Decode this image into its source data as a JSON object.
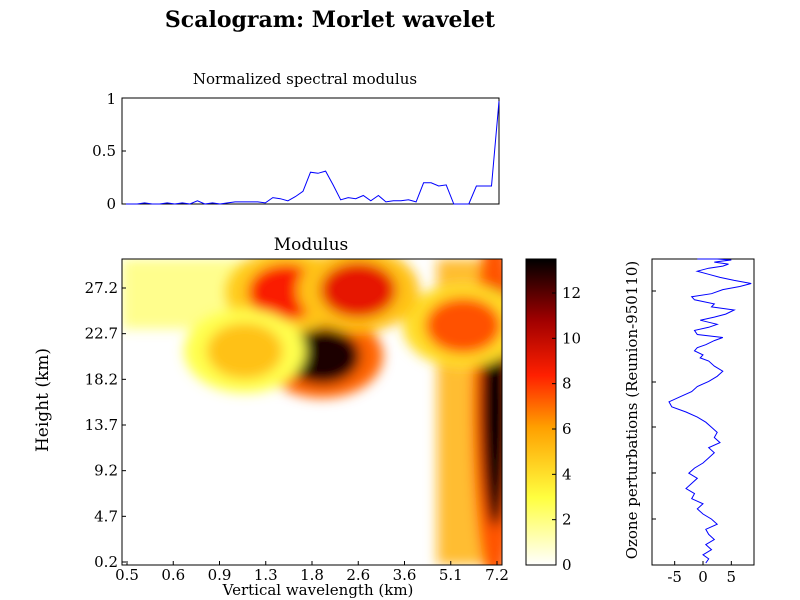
{
  "page": {
    "title": "Scalogram: Morlet wavelet"
  },
  "chart_data": [
    {
      "type": "line",
      "title": "Normalized spectral modulus",
      "xlabel": "",
      "ylabel": "",
      "ylim": [
        0,
        1
      ],
      "yticks": [
        "0",
        "0.5",
        "1"
      ],
      "line_color": "#0000ff",
      "series": [
        {
          "values": [
            0.0,
            0.0,
            0.0,
            0.01,
            0.0,
            0.0,
            0.01,
            0.0,
            0.01,
            0.0,
            0.03,
            0.0,
            0.01,
            0.0,
            0.01,
            0.02,
            0.02,
            0.02,
            0.02,
            0.01,
            0.06,
            0.05,
            0.03,
            0.07,
            0.12,
            0.3,
            0.29,
            0.31,
            0.18,
            0.04,
            0.06,
            0.05,
            0.08,
            0.03,
            0.08,
            0.02,
            0.03,
            0.03,
            0.04,
            0.02,
            0.2,
            0.2,
            0.17,
            0.18,
            0.0,
            0.0,
            0.0,
            0.17,
            0.17,
            0.17,
            0.97
          ]
        }
      ]
    },
    {
      "type": "heatmap",
      "title": "Modulus",
      "xlabel": "Vertical wavelength (km)",
      "ylabel": "Height (km)",
      "x_ticks": [
        "0.5",
        "0.6",
        "0.9",
        "1.3",
        "1.8",
        "2.6",
        "3.6",
        "5.1",
        "7.2"
      ],
      "y_ticks": [
        "0.2",
        "4.7",
        "9.2",
        "13.7",
        "18.2",
        "22.7",
        "27.2"
      ],
      "ylim": [
        0,
        30
      ],
      "colormap": "hot_inverted",
      "colorbar": {
        "min": 0,
        "max": 13.5,
        "ticks": [
          "0",
          "2",
          "4",
          "6",
          "8",
          "10",
          "12"
        ]
      },
      "hotspots": [
        {
          "x_km": 1.95,
          "y_km": 20.5,
          "value": 13.0
        },
        {
          "x_km": 7.1,
          "y_km": 15.5,
          "value": 13.5
        },
        {
          "x_km": 1.5,
          "y_km": 26.8,
          "value": 8.5
        },
        {
          "x_km": 5.6,
          "y_km": 23.5,
          "value": 7.5
        },
        {
          "x_km": 1.1,
          "y_km": 21.0,
          "value": 5.0
        },
        {
          "x_km": 2.6,
          "y_km": 27.0,
          "value": 9.0
        }
      ]
    },
    {
      "type": "line",
      "title": "",
      "xlabel": "",
      "ylabel": "Ozone perturbations (Reunion-950110)",
      "x_ticks": [
        "-5",
        "0",
        "5"
      ],
      "xlim": [
        -9,
        9
      ],
      "ylim": [
        0,
        30
      ],
      "line_color": "#0000ff",
      "series": [
        {
          "x": [
            0.5,
            1.0,
            0.0,
            1.5,
            0.5,
            2.0,
            1.0,
            0.5,
            2.5,
            1.5,
            0.0,
            -1.0,
            0.0,
            -2.0,
            -1.5,
            -3.0,
            -2.0,
            -1.0,
            -2.5,
            -1.5,
            0.0,
            1.0,
            2.0,
            1.0,
            3.0,
            2.0,
            2.5,
            1.5,
            0.5,
            -1.0,
            -3.0,
            -5.5,
            -6.0,
            -4.0,
            -2.0,
            -1.0,
            1.0,
            2.5,
            3.5,
            2.0,
            1.0,
            -0.5,
            0.0,
            -1.5,
            -1.0,
            0.5,
            2.0,
            3.5,
            -1.0,
            -1.5,
            1.0,
            2.5,
            -0.5,
            2.0,
            4.0,
            5.5,
            1.5,
            2.0,
            -1.5,
            -2.0,
            1.5,
            3.5,
            6.5,
            8.5,
            5.5,
            3.0,
            1.0,
            -1.0,
            1.0,
            3.5,
            4.5,
            2.0,
            3.5,
            5.0,
            2.5,
            0.0,
            -1.0
          ],
          "y": [
            0.2,
            0.6,
            1.0,
            1.5,
            2.0,
            2.5,
            3.0,
            3.5,
            4.0,
            4.5,
            5.0,
            5.5,
            6.0,
            6.5,
            7.0,
            7.5,
            8.0,
            8.5,
            9.0,
            9.5,
            10.0,
            10.5,
            11.0,
            11.5,
            12.0,
            12.5,
            13.0,
            13.5,
            14.0,
            14.5,
            15.0,
            15.5,
            16.0,
            16.5,
            17.0,
            17.5,
            18.0,
            18.5,
            19.0,
            19.5,
            20.0,
            20.3,
            20.6,
            21.0,
            21.3,
            21.6,
            22.0,
            22.3,
            22.6,
            23.0,
            23.3,
            23.6,
            24.0,
            24.3,
            24.6,
            25.0,
            25.3,
            25.6,
            26.0,
            26.3,
            26.6,
            27.0,
            27.3,
            27.6,
            27.9,
            28.2,
            28.5,
            28.8,
            29.1,
            29.3,
            29.5,
            29.7,
            29.8,
            29.9,
            30.0,
            30.0,
            30.0
          ]
        }
      ]
    }
  ]
}
